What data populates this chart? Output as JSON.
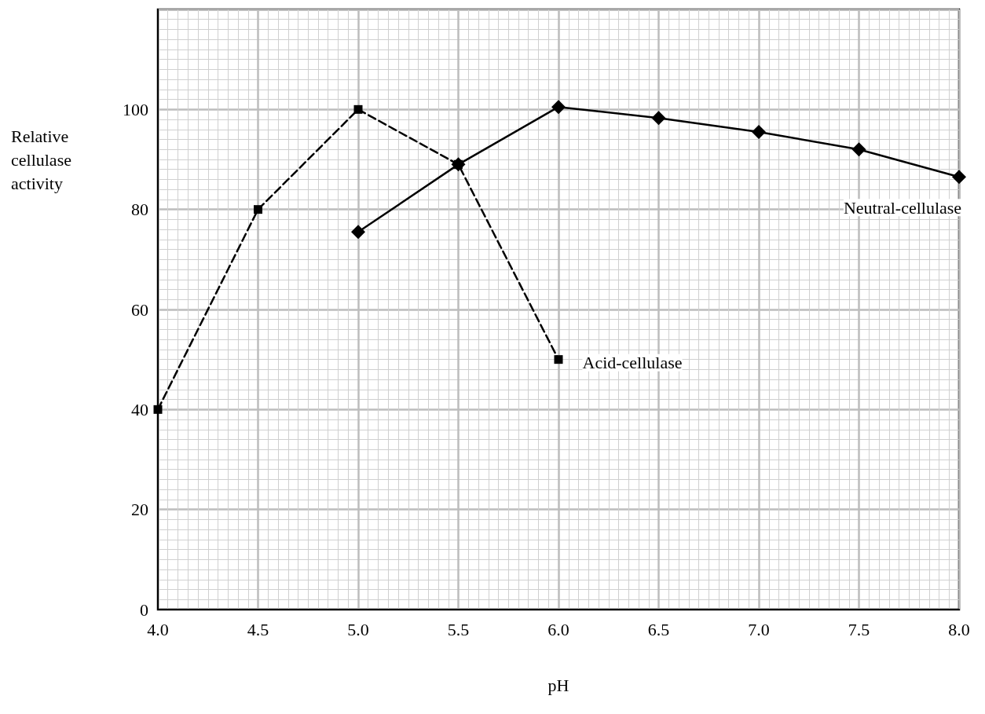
{
  "chart_data": {
    "type": "line",
    "xlabel": "pH",
    "ylabel": "Relative cellulase activity",
    "xlim": [
      4.0,
      8.0
    ],
    "xticks": [
      {
        "value": 4.0,
        "label": "4.0"
      },
      {
        "value": 4.5,
        "label": "4.5"
      },
      {
        "value": 5.0,
        "label": "5.0"
      },
      {
        "value": 5.5,
        "label": "5.5"
      },
      {
        "value": 6.0,
        "label": "6.0"
      },
      {
        "value": 6.5,
        "label": "6.5"
      },
      {
        "value": 7.0,
        "label": "7.0"
      },
      {
        "value": 7.5,
        "label": "7.5"
      },
      {
        "value": 8.0,
        "label": "8.0"
      }
    ],
    "ylim": [
      0,
      120
    ],
    "yticks": [
      0,
      20,
      40,
      60,
      80,
      100
    ],
    "grid": true,
    "legend": false,
    "series": [
      {
        "name": "Acid-cellulase",
        "color": "#000000",
        "marker": "square",
        "line_style": "dashed",
        "x": [
          4.0,
          4.5,
          5.0,
          5.5,
          6.0
        ],
        "values": [
          40,
          80,
          100,
          89,
          50
        ]
      },
      {
        "name": "Neutral-cellulase",
        "color": "#000000",
        "marker": "diamond",
        "line_style": "solid",
        "x": [
          5.0,
          5.5,
          6.0,
          6.5,
          7.0,
          7.5,
          8.0
        ],
        "values": [
          75.5,
          89,
          100.5,
          98.3,
          95.5,
          92,
          86.5
        ]
      }
    ]
  }
}
